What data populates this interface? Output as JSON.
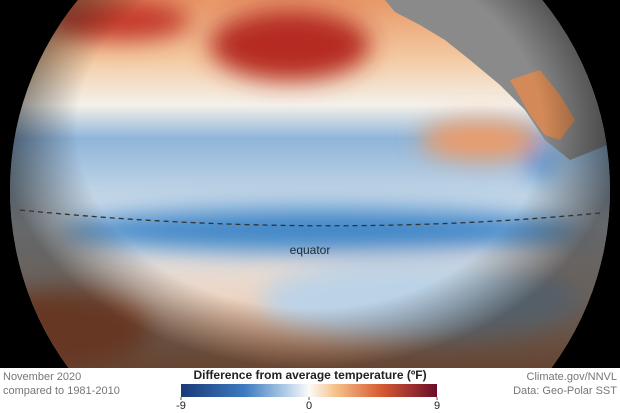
{
  "map": {
    "label": "equator"
  },
  "footer": {
    "date": "November 2020",
    "baseline": "compared to 1981-2010",
    "credit": "Climate.gov/NNVL",
    "source": "Data: Geo-Polar SST"
  },
  "legend": {
    "title": "Difference from average temperature (ºF)",
    "lim": [
      -9,
      9
    ],
    "ticks": [
      -9,
      0,
      9
    ]
  }
}
